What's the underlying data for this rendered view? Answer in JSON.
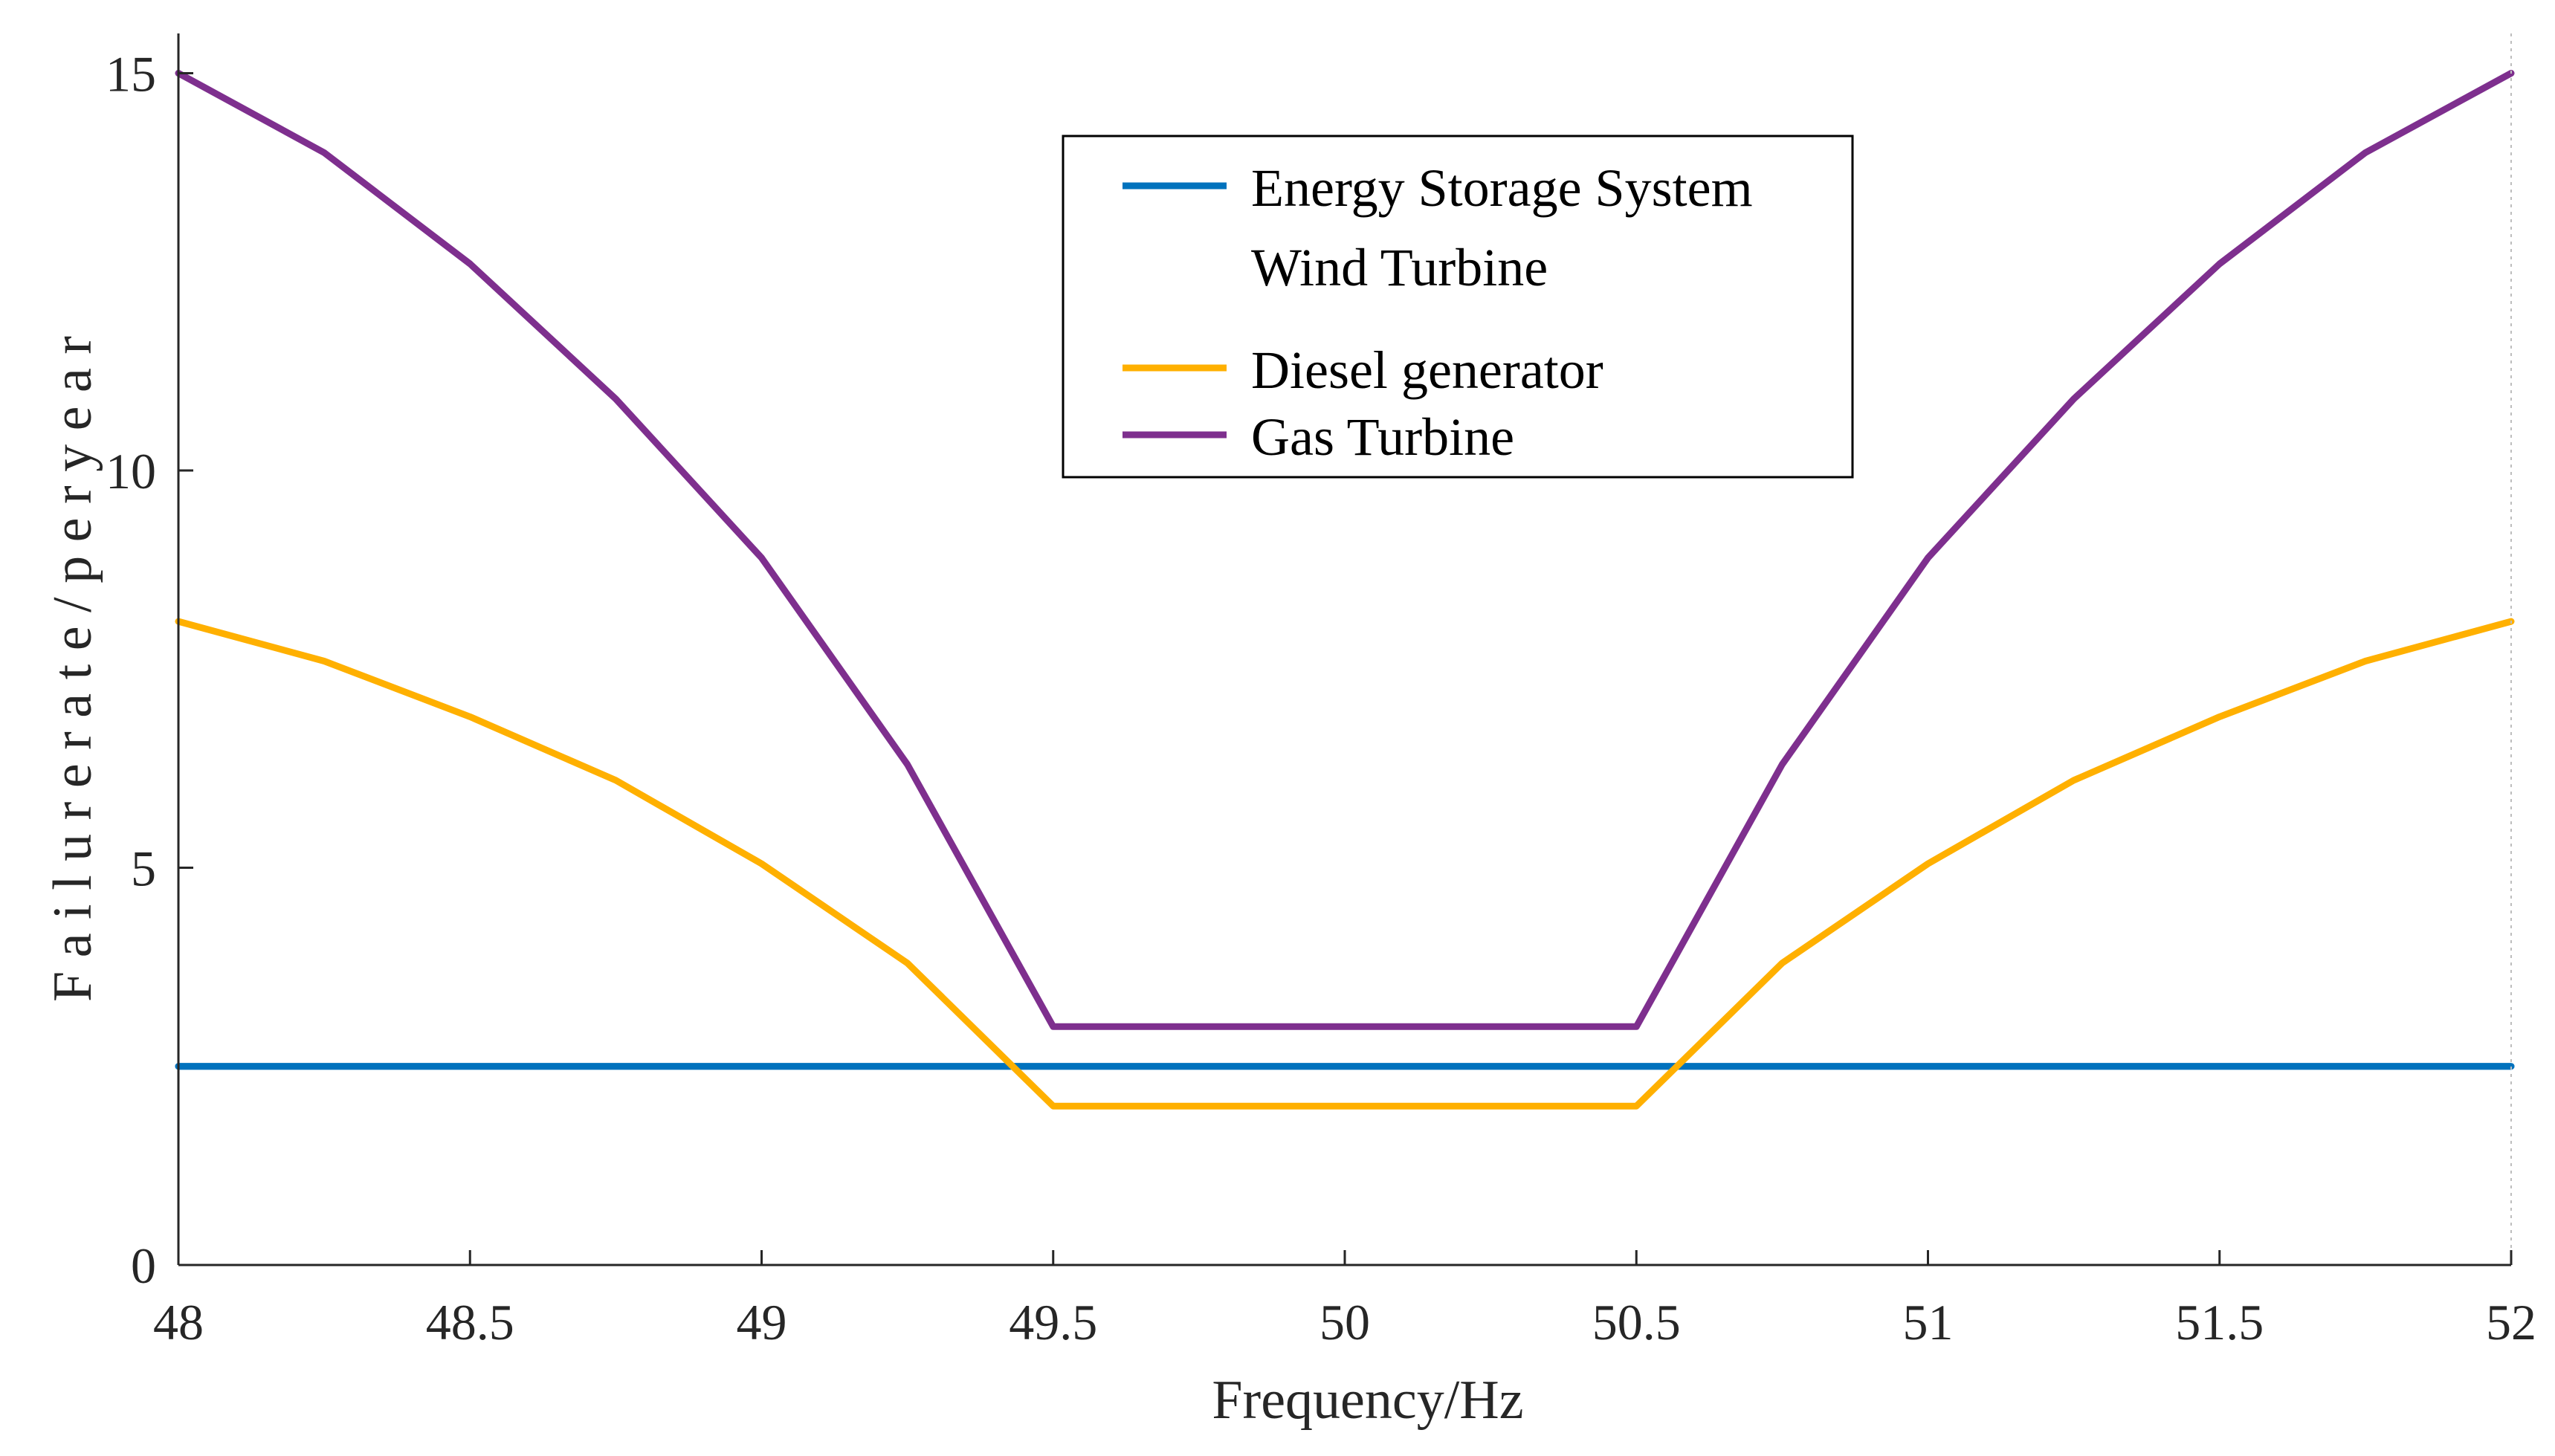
{
  "chart_data": {
    "type": "line",
    "title": "",
    "xlabel": "Frequency/Hz",
    "ylabel": "F a i l u r e  r a t e / p e r  y e a r",
    "xlim": [
      48,
      52
    ],
    "ylim": [
      0,
      15.5
    ],
    "xticks": [
      48,
      48.5,
      49,
      49.5,
      50,
      50.5,
      51,
      51.5,
      52
    ],
    "xtick_labels": [
      "48",
      "48.5",
      "49",
      "49.5",
      "50",
      "50.5",
      "51",
      "51.5",
      "52"
    ],
    "yticks": [
      0,
      5,
      10,
      15
    ],
    "ytick_labels": [
      "0",
      "5",
      "10",
      "15"
    ],
    "grid": false,
    "legend_position": "top-center",
    "series": [
      {
        "name": "Energy Storage System",
        "color": "#0072BD",
        "x": [
          48,
          52
        ],
        "y": [
          2.5,
          2.5
        ]
      },
      {
        "name": "Wind Turbine",
        "color": "#0072BD",
        "x": [
          48,
          52
        ],
        "y": [
          2.5,
          2.5
        ]
      },
      {
        "name": "Diesel generator",
        "color": "#FFB000",
        "x": [
          48,
          48.25,
          48.5,
          48.75,
          49,
          49.25,
          49.5,
          50,
          50.5,
          50.75,
          51,
          51.25,
          51.5,
          51.75,
          52
        ],
        "y": [
          8.1,
          7.6,
          6.9,
          6.1,
          5.05,
          3.8,
          2.0,
          2.0,
          2.0,
          3.8,
          5.05,
          6.1,
          6.9,
          7.6,
          8.1
        ]
      },
      {
        "name": "Gas Turbine",
        "color": "#7E2F8E",
        "x": [
          48,
          48.25,
          48.5,
          48.75,
          49,
          49.25,
          49.5,
          50,
          50.5,
          50.75,
          51,
          51.25,
          51.5,
          51.75,
          52
        ],
        "y": [
          15.0,
          14.0,
          12.6,
          10.9,
          8.9,
          6.3,
          3.0,
          3.0,
          3.0,
          6.3,
          8.9,
          10.9,
          12.6,
          14.0,
          15.0
        ]
      }
    ]
  }
}
